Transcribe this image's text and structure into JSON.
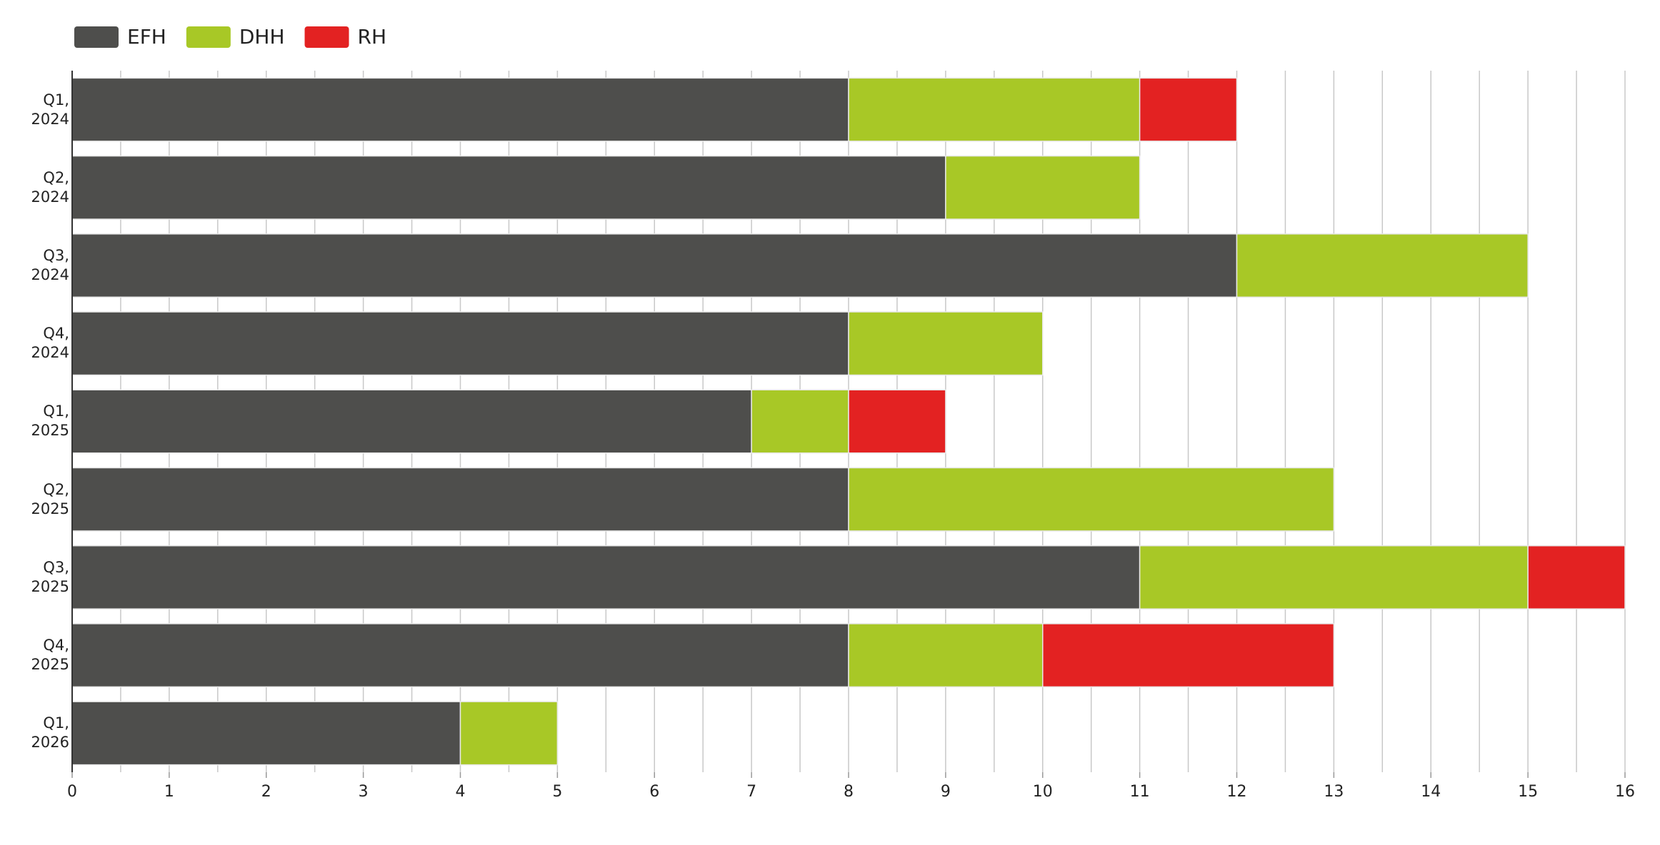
{
  "chart_data": {
    "type": "stacked-bar-horizontal",
    "categories": [
      "Q1, 2024",
      "Q2, 2024",
      "Q3, 2024",
      "Q4, 2024",
      "Q1, 2025",
      "Q2, 2025",
      "Q3, 2025",
      "Q4, 2025",
      "Q1, 2026"
    ],
    "series": [
      {
        "name": "EFH",
        "color": "#4e4e4c",
        "values": [
          8,
          9,
          12,
          8,
          7,
          8,
          11,
          8,
          4
        ]
      },
      {
        "name": "DHH",
        "color": "#a8c826",
        "values": [
          3,
          2,
          3,
          2,
          1,
          5,
          4,
          2,
          1
        ]
      },
      {
        "name": "RH",
        "color": "#e32222",
        "values": [
          1,
          0,
          0,
          0,
          1,
          0,
          1,
          3,
          0
        ]
      }
    ],
    "xlim": [
      0,
      16
    ],
    "xticks": [
      0,
      1,
      2,
      3,
      4,
      5,
      6,
      7,
      8,
      9,
      10,
      11,
      12,
      13,
      14,
      15,
      16
    ],
    "grid": true,
    "legend": "top-left"
  }
}
